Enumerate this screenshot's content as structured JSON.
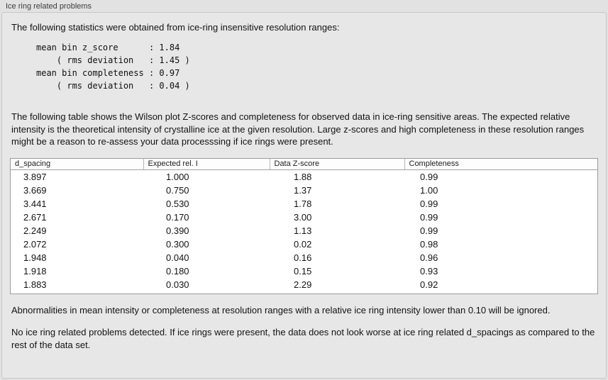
{
  "panel": {
    "title": "Ice ring related problems",
    "intro": "The following statistics were obtained from ice-ring insensitive resolution ranges:",
    "stats_block": "mean bin z_score      : 1.84\n    ( rms deviation   : 1.45 )\nmean bin completeness : 0.97\n    ( rms deviation   : 0.04 )",
    "description": "The following table shows the Wilson plot Z-scores and completeness for observed data in ice-ring sensitive areas. The expected relative intensity is the theoretical intensity of crystalline ice at the given resolution. Large z-scores and high completeness in these resolution ranges might be a reason to re-assess your data processsing if ice rings were present.",
    "note_ignore": "Abnormalities in mean intensity or completeness at resolution ranges with a relative ice ring intensity lower than 0.10 will be ignored.",
    "conclusion": "No ice ring related problems detected. If ice rings were present, the data does not look worse at ice ring related d_spacings as compared to the rest of the data set."
  },
  "table": {
    "headers": [
      "d_spacing",
      "Expected rel. I",
      "Data Z-score",
      "Completeness"
    ],
    "rows": [
      [
        "3.897",
        "1.000",
        "1.88",
        "0.99"
      ],
      [
        "3.669",
        "0.750",
        "1.37",
        "1.00"
      ],
      [
        "3.441",
        "0.530",
        "1.78",
        "0.99"
      ],
      [
        "2.671",
        "0.170",
        "3.00",
        "0.99"
      ],
      [
        "2.249",
        "0.390",
        "1.13",
        "0.99"
      ],
      [
        "2.072",
        "0.300",
        "0.02",
        "0.98"
      ],
      [
        "1.948",
        "0.040",
        "0.16",
        "0.96"
      ],
      [
        "1.918",
        "0.180",
        "0.15",
        "0.93"
      ],
      [
        "1.883",
        "0.030",
        "2.29",
        "0.92"
      ]
    ]
  }
}
